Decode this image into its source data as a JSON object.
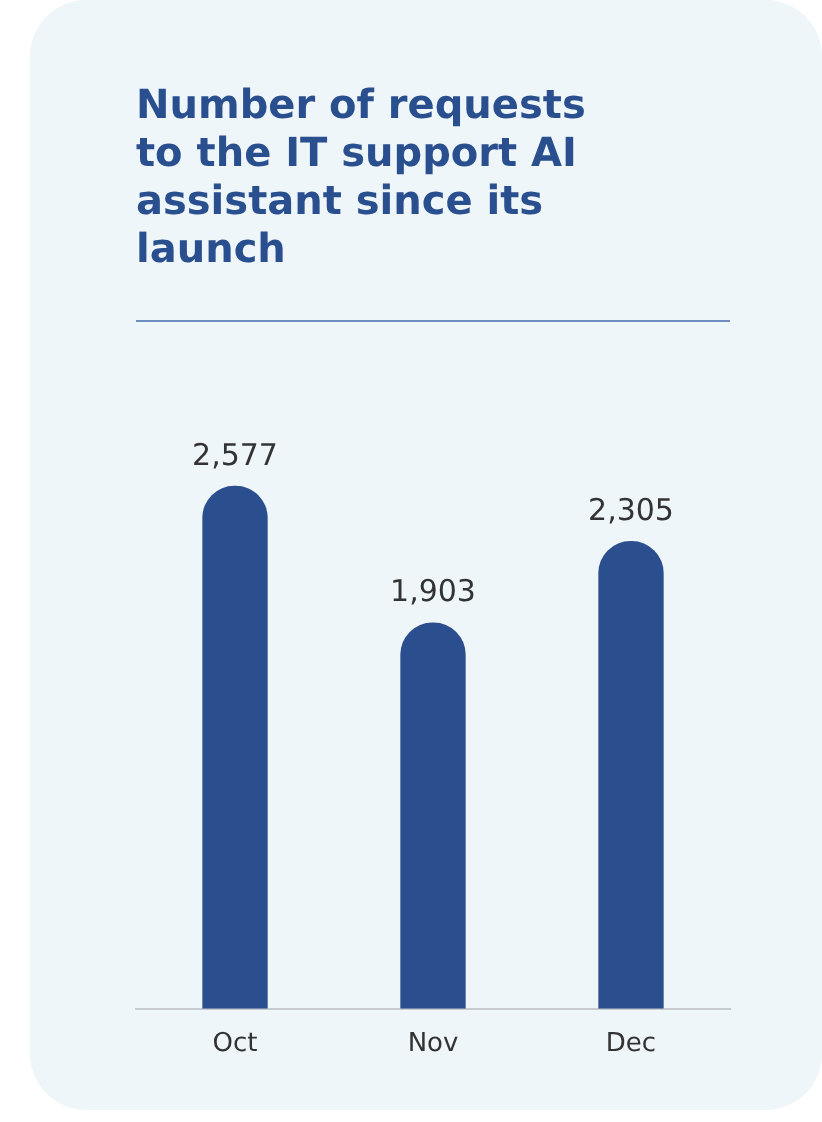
{
  "chart_data": {
    "type": "bar",
    "title": "Number of requests to the IT support AI assistant since its launch",
    "categories": [
      "Oct",
      "Nov",
      "Dec"
    ],
    "values": [
      2577,
      1903,
      2305
    ],
    "value_labels": [
      "2,577",
      "1,903",
      "2,305"
    ],
    "color": "#2b4f8e",
    "grid": false,
    "legend": false,
    "tick_labels": "x"
  }
}
